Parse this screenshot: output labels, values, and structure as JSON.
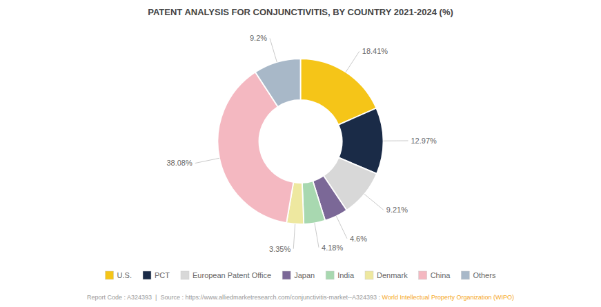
{
  "chart_data": {
    "type": "pie",
    "title": "PATENT ANALYSIS FOR CONJUNCTIVITIS, BY COUNTRY 2021-2024 (%)",
    "categories": [
      "U.S.",
      "PCT",
      "European Patent Office",
      "Japan",
      "India",
      "Denmark",
      "China",
      "Others"
    ],
    "values": [
      18.41,
      12.97,
      9.21,
      4.6,
      4.18,
      3.35,
      38.08,
      9.2
    ],
    "value_labels": [
      "18.41%",
      "12.97%",
      "9.21%",
      "4.6%",
      "4.18%",
      "3.35%",
      "38.08%",
      "9.2%"
    ],
    "colors": [
      "#F5C518",
      "#1A2B47",
      "#D8D8D8",
      "#7B6897",
      "#A8D8B0",
      "#EEE8A0",
      "#F4B8C1",
      "#A8B8C8"
    ],
    "data_labels": true,
    "legend": "bottom",
    "annotations": [
      {
        "text": "Report Code : A324393  |  Source : https://www.alliedmarketresearch.com/conjunctivitis-market--A324393 : ",
        "color": "#999999"
      },
      {
        "text": "World Intellectual Property Organization (WIPO)",
        "color": "#F5A623"
      }
    ]
  }
}
